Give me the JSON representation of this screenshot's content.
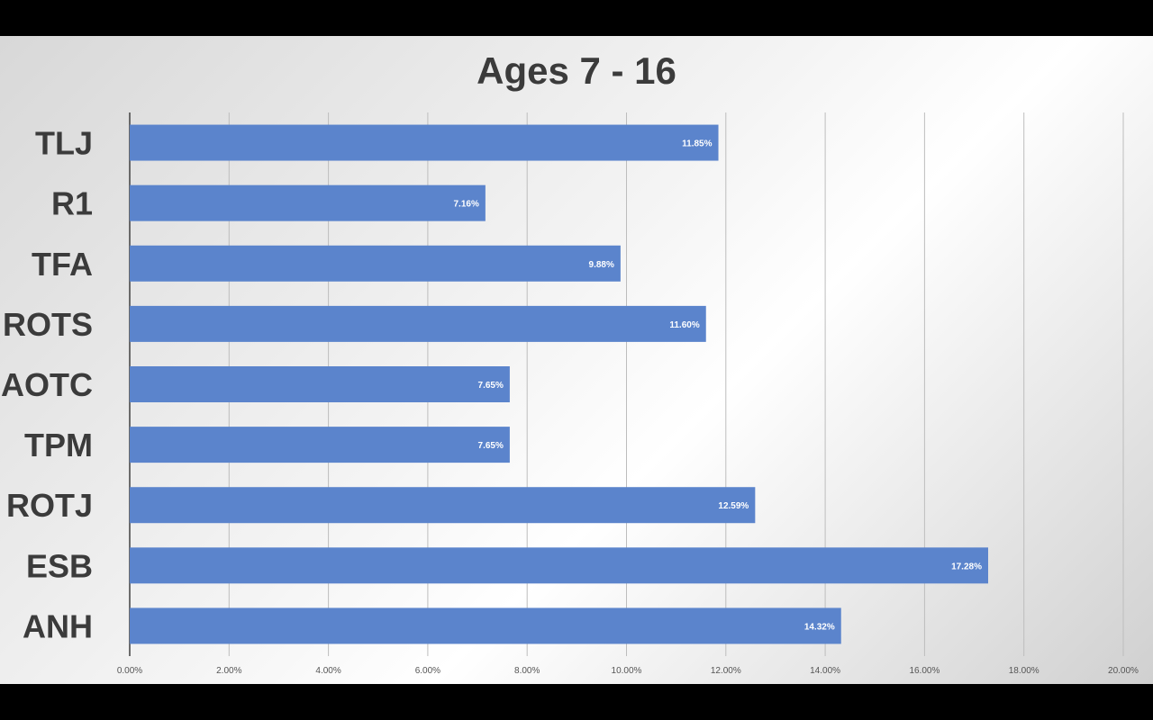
{
  "chart_data": {
    "type": "bar",
    "orientation": "horizontal",
    "title": "Ages 7 - 16",
    "xlabel": "",
    "ylabel": "",
    "categories": [
      "TLJ",
      "R1",
      "TFA",
      "ROTS",
      "AOTC",
      "TPM",
      "ROTJ",
      "ESB",
      "ANH"
    ],
    "values": [
      11.85,
      7.16,
      9.88,
      11.6,
      7.65,
      7.65,
      12.59,
      17.28,
      14.32
    ],
    "data_labels": [
      "11.85%",
      "7.16%",
      "9.88%",
      "11.60%",
      "7.65%",
      "7.65%",
      "12.59%",
      "17.28%",
      "14.32%"
    ],
    "xlim": [
      0,
      20
    ],
    "x_ticks": [
      0,
      2,
      4,
      6,
      8,
      10,
      12,
      14,
      16,
      18,
      20
    ],
    "x_tick_labels": [
      "0.00%",
      "2.00%",
      "4.00%",
      "6.00%",
      "8.00%",
      "10.00%",
      "12.00%",
      "14.00%",
      "16.00%",
      "18.00%",
      "20.00%"
    ],
    "grid": "vertical",
    "legend": "none",
    "bar_color": "#5b84cc",
    "label_color": "#3b3b3b"
  }
}
